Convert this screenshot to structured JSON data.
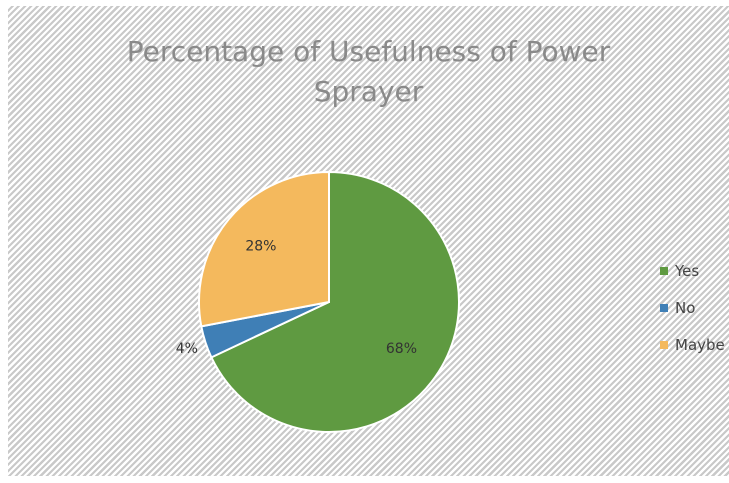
{
  "chart_data": {
    "type": "pie",
    "title_lines": [
      "Percentage of Usefulness of Power",
      "Sprayer"
    ],
    "categories": [
      "Yes",
      "No",
      "Maybe"
    ],
    "values": [
      68,
      4,
      28
    ],
    "value_labels": [
      "68%",
      "4%",
      "28%"
    ],
    "colors": [
      "#5f9a41",
      "#3f7fb6",
      "#f4b95d"
    ],
    "legend_position": "right"
  }
}
